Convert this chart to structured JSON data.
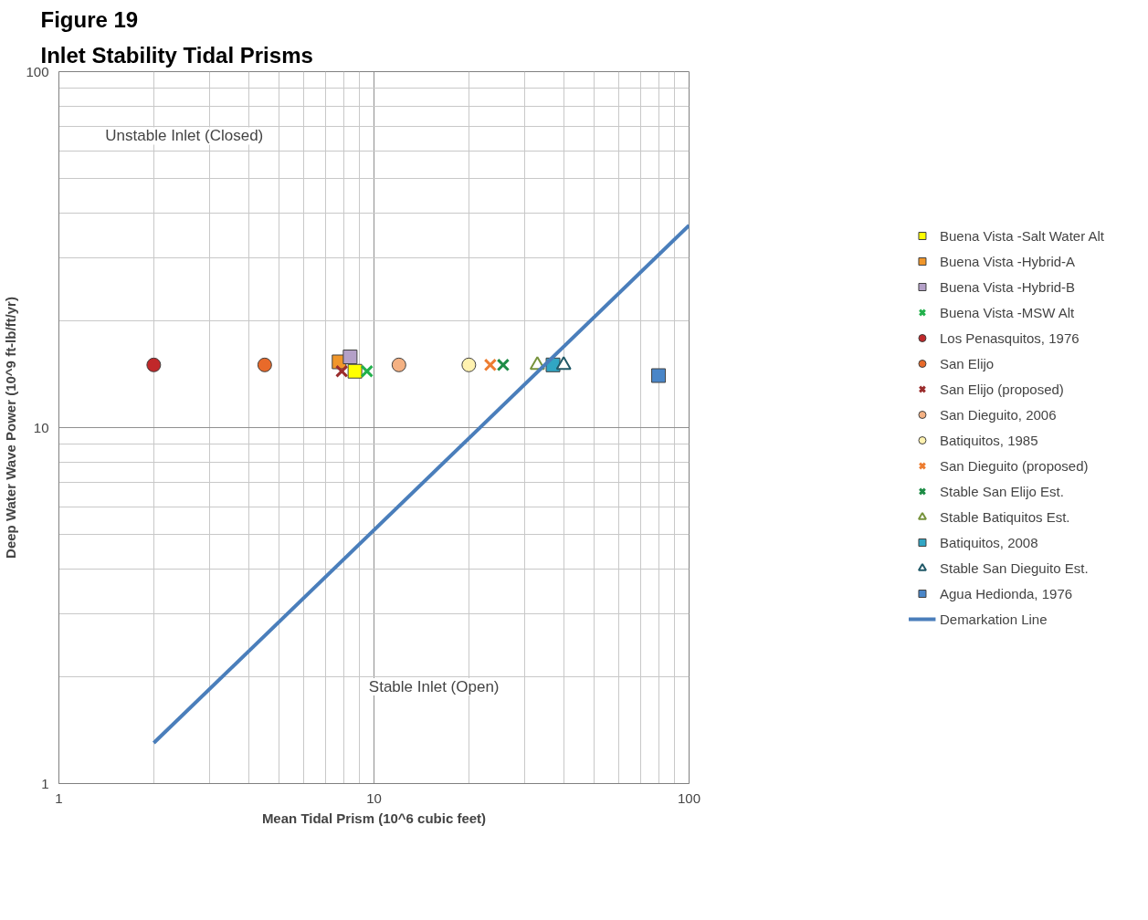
{
  "chart_data": {
    "type": "scatter",
    "title": "Figure 19",
    "subtitle": "Inlet Stability Tidal Prisms",
    "xlabel": "Mean Tidal Prism (10^6 cubic feet)",
    "ylabel": "Deep Water Wave Power (10^9 ft-lb/ft/yr)",
    "log": "xy",
    "xlim": [
      1,
      100
    ],
    "ylim": [
      1,
      100
    ],
    "xticks": [
      1,
      10,
      100
    ],
    "yticks": [
      1,
      10,
      100
    ],
    "grid": true,
    "legend": "right",
    "annotations": [
      "Unstable Inlet (Closed)",
      "Stable Inlet (Open)"
    ],
    "series": [
      {
        "name": "Buena Vista -Salt Water Alt",
        "color": "#ffff00",
        "marker": "square",
        "x": [
          8.7
        ],
        "values": [
          14.4
        ]
      },
      {
        "name": "Buena Vista -Hybrid-A",
        "color": "#f0962a",
        "marker": "square",
        "x": [
          7.75
        ],
        "values": [
          15.3
        ]
      },
      {
        "name": "Buena Vista -Hybrid-B",
        "color": "#b4a0c8",
        "marker": "square",
        "x": [
          8.4
        ],
        "values": [
          15.8
        ]
      },
      {
        "name": "Buena Vista -MSW Alt",
        "color": "#22b14c",
        "marker": "cross",
        "x": [
          9.5
        ],
        "values": [
          14.4
        ]
      },
      {
        "name": "Los Penasquitos, 1976",
        "color": "#c0282a",
        "marker": "circle",
        "x": [
          2.0
        ],
        "values": [
          15
        ]
      },
      {
        "name": "San Elijo",
        "color": "#e86a2a",
        "marker": "circle",
        "x": [
          4.5
        ],
        "values": [
          15
        ]
      },
      {
        "name": "San Elijo (proposed)",
        "color": "#9b2d2d",
        "marker": "cross",
        "x": [
          7.9
        ],
        "values": [
          14.4
        ]
      },
      {
        "name": "San Dieguito, 2006",
        "color": "#f4b183",
        "marker": "circle",
        "x": [
          12
        ],
        "values": [
          15
        ]
      },
      {
        "name": "Batiquitos, 1985",
        "color": "#fff2b0",
        "marker": "circle",
        "x": [
          20
        ],
        "values": [
          15
        ]
      },
      {
        "name": "San Dieguito (proposed)",
        "color": "#ed7d31",
        "marker": "cross",
        "x": [
          23.4
        ],
        "values": [
          15
        ]
      },
      {
        "name": "Stable San Elijo Est.",
        "color": "#1e8c46",
        "marker": "cross",
        "x": [
          25.7
        ],
        "values": [
          15
        ]
      },
      {
        "name": "Stable Batiquitos Est.",
        "color": "#77933c",
        "marker": "triangle",
        "x": [
          33
        ],
        "values": [
          15
        ]
      },
      {
        "name": "Batiquitos, 2008",
        "color": "#31a6c4",
        "marker": "square",
        "x": [
          37
        ],
        "values": [
          15
        ]
      },
      {
        "name": "Stable San Dieguito Est.",
        "color": "#215968",
        "marker": "triangle",
        "x": [
          40
        ],
        "values": [
          15
        ]
      },
      {
        "name": "Agua Hedionda, 1976",
        "color": "#4a86c8",
        "marker": "square",
        "x": [
          80
        ],
        "values": [
          14.0
        ]
      },
      {
        "name": "Demarkation Line",
        "type": "line",
        "color": "#4a7ebb",
        "marker": "none",
        "x": [
          2,
          100
        ],
        "values": [
          1.3,
          37
        ]
      }
    ]
  }
}
